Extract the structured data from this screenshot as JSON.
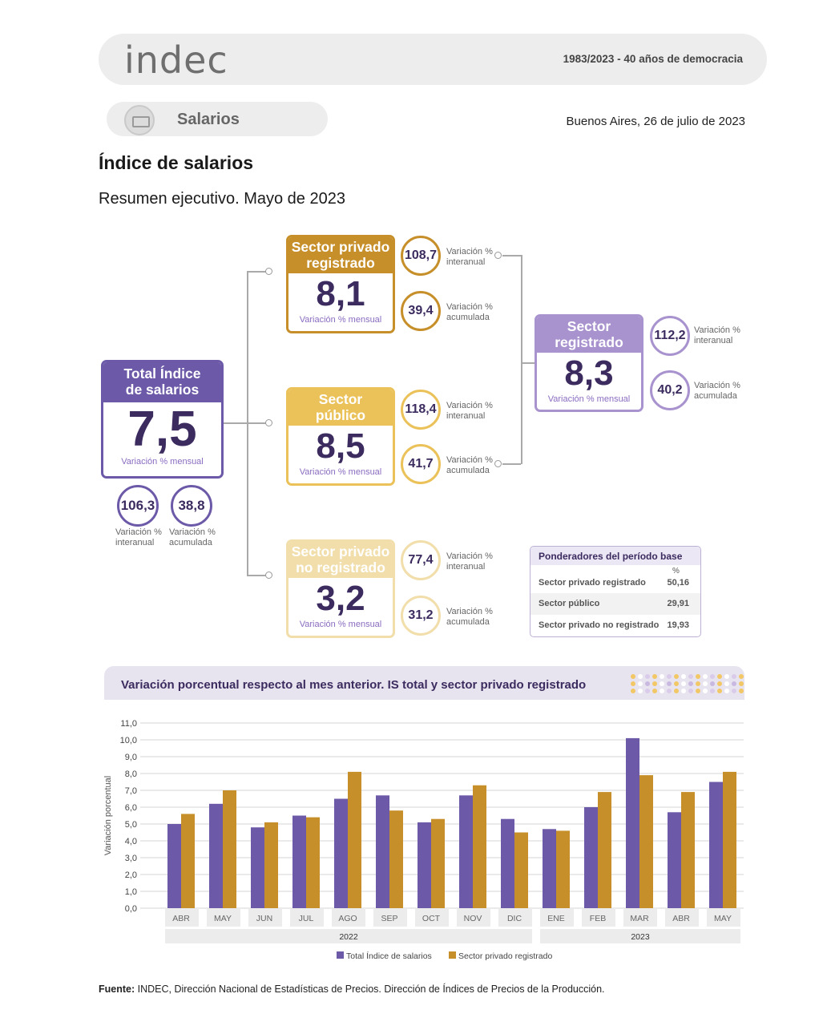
{
  "header": {
    "logo": "indec",
    "motto": "1983/2023 - 40 años de democracia"
  },
  "section": {
    "label": "Salarios",
    "dateline": "Buenos Aires, 26 de julio de 2023"
  },
  "title": "Índice de salarios",
  "subtitle": "Resumen ejecutivo. Mayo de 2023",
  "total": {
    "title_line1": "Total Índice",
    "title_line2": "de salarios",
    "value": "7,5",
    "sub": "Variación % mensual",
    "interanual": "106,3",
    "acumulada": "38,8",
    "interanual_l1": "Variación %",
    "interanual_l2": "interanual",
    "acumulada_l1": "Variación %",
    "acumulada_l2": "acumulada"
  },
  "privado_registrado": {
    "title_line1": "Sector privado",
    "title_line2": "registrado",
    "value": "8,1",
    "sub": "Variación % mensual",
    "interanual": "108,7",
    "acumulada": "39,4"
  },
  "publico": {
    "title_line1": "Sector",
    "title_line2": "público",
    "value": "8,5",
    "sub": "Variación % mensual",
    "interanual": "118,4",
    "acumulada": "41,7"
  },
  "privado_no_registrado": {
    "title_line1": "Sector privado",
    "title_line2": "no registrado",
    "value": "3,2",
    "sub": "Variación % mensual",
    "interanual": "77,4",
    "acumulada": "31,2"
  },
  "registrado": {
    "title_line1": "Sector",
    "title_line2": "registrado",
    "value": "8,3",
    "sub": "Variación % mensual",
    "interanual": "112,2",
    "acumulada": "40,2"
  },
  "labels": {
    "var_l1": "Variación %",
    "interanual": "interanual",
    "acumulada": "acumulada"
  },
  "ponderadores": {
    "title": "Ponderadores del período base",
    "unit": "%",
    "rows": [
      {
        "name": "Sector privado registrado",
        "value": "50,16"
      },
      {
        "name": "Sector público",
        "value": "29,91"
      },
      {
        "name": "Sector privado no registrado",
        "value": "19,93"
      }
    ]
  },
  "colors": {
    "purple": "#6c5aa8",
    "purple_light": "#a893cf",
    "gold": "#c68f2a",
    "yellow": "#ebc25a",
    "cream": "#f1deab",
    "navy_text": "#3b2b5f"
  },
  "chart_title": "Variación porcentual respecto al mes anterior. IS total y sector privado registrado",
  "chart_data": {
    "type": "bar",
    "categories": [
      "ABR",
      "MAY",
      "JUN",
      "JUL",
      "AGO",
      "SEP",
      "OCT",
      "NOV",
      "DIC",
      "ENE",
      "FEB",
      "MAR",
      "ABR",
      "MAY"
    ],
    "year_groups": [
      {
        "label": "2022",
        "count": 9
      },
      {
        "label": "2023",
        "count": 5
      }
    ],
    "series": [
      {
        "name": "Total Índice de salarios",
        "color": "#6c5aa8",
        "values": [
          5.0,
          6.2,
          4.8,
          5.5,
          6.5,
          6.7,
          5.1,
          6.7,
          5.3,
          4.7,
          6.0,
          10.1,
          5.7,
          7.5
        ]
      },
      {
        "name": "Sector privado registrado",
        "color": "#c68f2a",
        "values": [
          5.6,
          7.0,
          5.1,
          5.4,
          8.1,
          5.8,
          5.3,
          7.3,
          4.5,
          4.6,
          6.9,
          7.9,
          6.9,
          8.1
        ]
      }
    ],
    "yticks": [
      "11,0",
      "10,0",
      "9,0",
      "8,0",
      "7,0",
      "6,0",
      "5,0",
      "4,0",
      "3,0",
      "2,0",
      "1,0",
      "0,0"
    ],
    "ylim": [
      0,
      11
    ],
    "ylabel": "Variación porcentual",
    "xlabel": "",
    "grid": true,
    "legend": "bottom"
  },
  "fuente_label": "Fuente:",
  "fuente_text": " INDEC, Dirección Nacional de Estadísticas de Precios. Dirección de Índices de Precios de la Producción."
}
